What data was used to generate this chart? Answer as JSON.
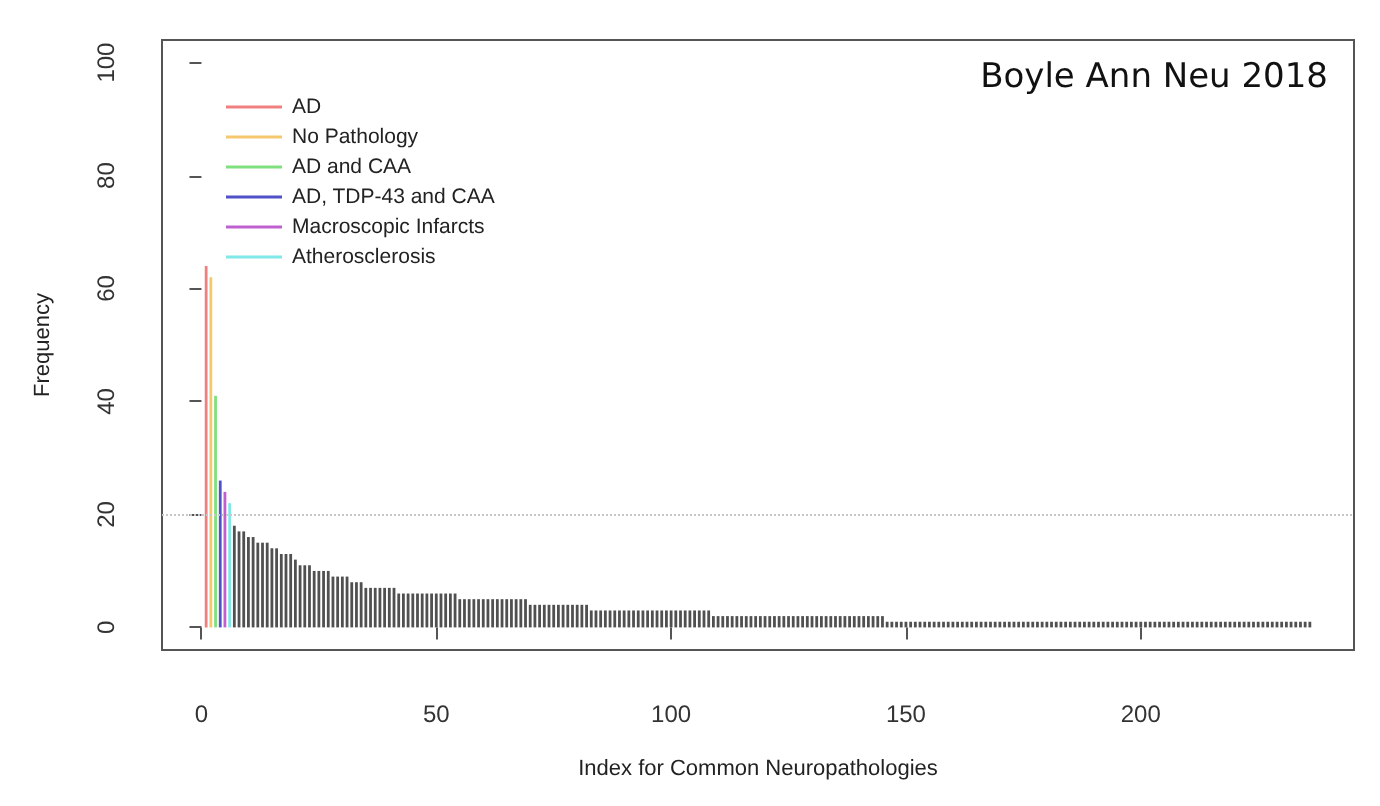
{
  "chart_data": {
    "type": "bar",
    "xlabel": "Index for Common Neuropathologies",
    "ylabel": "Frequency",
    "annotations": [
      "Boyle Ann Neu 2018"
    ],
    "xlim": [
      -8.4,
      245.4
    ],
    "xticks": [
      0,
      50,
      100,
      150,
      200
    ],
    "ylim": [
      -4,
      104
    ],
    "yticks": [
      0,
      20,
      40,
      60,
      80,
      100
    ],
    "legend": "top left",
    "ref_lines": [
      {
        "axis": "y",
        "value": 20,
        "color": "#c8c8c8",
        "line_style": "dotted"
      }
    ],
    "series": [
      {
        "name": "AD",
        "color": "#f08080",
        "x": [
          1
        ],
        "values": [
          64
        ]
      },
      {
        "name": "No Pathology",
        "color": "#f5c870",
        "x": [
          2
        ],
        "values": [
          62
        ]
      },
      {
        "name": "AD and CAA",
        "color": "#80e080",
        "x": [
          3
        ],
        "values": [
          41
        ]
      },
      {
        "name": "AD, TDP-43 and CAA",
        "color": "#5050c8",
        "x": [
          4
        ],
        "values": [
          26
        ]
      },
      {
        "name": "Macroscopic Infarcts",
        "color": "#c060d0",
        "x": [
          5
        ],
        "values": [
          24
        ]
      },
      {
        "name": "Atherosclerosis",
        "color": "#80e8e8",
        "x": [
          6
        ],
        "values": [
          22
        ]
      },
      {
        "color": "#505050",
        "x": [
          7,
          8,
          9,
          10,
          11,
          12,
          13,
          14,
          15,
          16,
          17,
          18,
          19,
          20,
          21,
          22,
          23,
          24,
          25,
          26,
          27,
          28,
          29,
          30,
          31,
          32,
          33,
          34,
          35,
          36,
          37,
          38,
          39,
          40,
          41,
          42,
          43,
          44,
          45,
          46,
          47,
          48,
          49,
          50,
          51,
          52,
          53,
          54,
          55,
          56,
          57,
          58,
          59,
          60,
          61,
          62,
          63,
          64,
          65,
          66,
          67,
          68,
          69,
          70,
          71,
          72,
          73,
          74,
          75,
          76,
          77,
          78,
          79,
          80,
          81,
          82,
          83,
          84,
          85,
          86,
          87,
          88,
          89,
          90,
          91,
          92,
          93,
          94,
          95,
          96,
          97,
          98,
          99,
          100,
          101,
          102,
          103,
          104,
          105,
          106,
          107,
          108,
          109,
          110,
          111,
          112,
          113,
          114,
          115,
          116,
          117,
          118,
          119,
          120,
          121,
          122,
          123,
          124,
          125,
          126,
          127,
          128,
          129,
          130,
          131,
          132,
          133,
          134,
          135,
          136,
          137,
          138,
          139,
          140,
          141,
          142,
          143,
          144,
          145,
          146,
          147,
          148,
          149,
          150,
          151,
          152,
          153,
          154,
          155,
          156,
          157,
          158,
          159,
          160,
          161,
          162,
          163,
          164,
          165,
          166,
          167,
          168,
          169,
          170,
          171,
          172,
          173,
          174,
          175,
          176,
          177,
          178,
          179,
          180,
          181,
          182,
          183,
          184,
          185,
          186,
          187,
          188,
          189,
          190,
          191,
          192,
          193,
          194,
          195,
          196,
          197,
          198,
          199,
          200,
          201,
          202,
          203,
          204,
          205,
          206,
          207,
          208,
          209,
          210,
          211,
          212,
          213,
          214,
          215,
          216,
          217,
          218,
          219,
          220,
          221,
          222,
          223,
          224,
          225,
          226,
          227,
          228,
          229,
          230,
          231,
          232,
          233,
          234,
          235,
          236
        ],
        "values": [
          18,
          17,
          17,
          16,
          16,
          15,
          15,
          15,
          14,
          14,
          13,
          13,
          13,
          12,
          11,
          11,
          11,
          10,
          10,
          10,
          10,
          9,
          9,
          9,
          9,
          8,
          8,
          8,
          7,
          7,
          7,
          7,
          7,
          7,
          7,
          6,
          6,
          6,
          6,
          6,
          6,
          6,
          6,
          6,
          6,
          6,
          6,
          6,
          5,
          5,
          5,
          5,
          5,
          5,
          5,
          5,
          5,
          5,
          5,
          5,
          5,
          5,
          5,
          4,
          4,
          4,
          4,
          4,
          4,
          4,
          4,
          4,
          4,
          4,
          4,
          4,
          3,
          3,
          3,
          3,
          3,
          3,
          3,
          3,
          3,
          3,
          3,
          3,
          3,
          3,
          3,
          3,
          3,
          3,
          3,
          3,
          3,
          3,
          3,
          3,
          3,
          3,
          2,
          2,
          2,
          2,
          2,
          2,
          2,
          2,
          2,
          2,
          2,
          2,
          2,
          2,
          2,
          2,
          2,
          2,
          2,
          2,
          2,
          2,
          2,
          2,
          2,
          2,
          2,
          2,
          2,
          2,
          2,
          2,
          2,
          2,
          2,
          2,
          2,
          1,
          1,
          1,
          1,
          1,
          1,
          1,
          1,
          1,
          1,
          1,
          1,
          1,
          1,
          1,
          1,
          1,
          1,
          1,
          1,
          1,
          1,
          1,
          1,
          1,
          1,
          1,
          1,
          1,
          1,
          1,
          1,
          1,
          1,
          1,
          1,
          1,
          1,
          1,
          1,
          1,
          1,
          1,
          1,
          1,
          1,
          1,
          1,
          1,
          1,
          1,
          1,
          1,
          1,
          1,
          1,
          1,
          1,
          1,
          1,
          1,
          1,
          1,
          1,
          1,
          1,
          1,
          1,
          1,
          1,
          1,
          1,
          1,
          1,
          1,
          1,
          1,
          1,
          1,
          1,
          1,
          1,
          1,
          1,
          1,
          1,
          1,
          1,
          1,
          1,
          1
        ]
      }
    ]
  }
}
